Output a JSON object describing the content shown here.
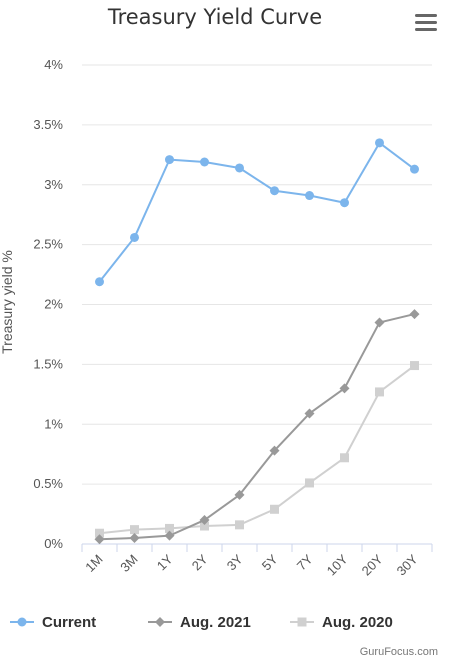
{
  "chart_data": {
    "type": "line",
    "title": "Treasury Yield Curve",
    "ylabel": "Treasury yield %",
    "xlabel": "",
    "categories": [
      "1M",
      "3M",
      "1Y",
      "2Y",
      "3Y",
      "5Y",
      "7Y",
      "10Y",
      "20Y",
      "30Y"
    ],
    "yticks": [
      "0%",
      "0.5%",
      "1%",
      "1.5%",
      "2%",
      "2.5%",
      "3%",
      "3.5%",
      "4%"
    ],
    "ylim": [
      0,
      4
    ],
    "grid": true,
    "legend_position": "bottom",
    "series": [
      {
        "name": "Current",
        "marker": "circle",
        "color": "#7cb5ec",
        "values": [
          2.19,
          2.56,
          3.21,
          3.19,
          3.14,
          2.95,
          2.91,
          2.85,
          3.35,
          3.13
        ]
      },
      {
        "name": "Aug. 2021",
        "marker": "diamond",
        "color": "#999999",
        "values": [
          0.04,
          0.05,
          0.07,
          0.2,
          0.41,
          0.78,
          1.09,
          1.3,
          1.85,
          1.92
        ]
      },
      {
        "name": "Aug. 2020",
        "marker": "square",
        "color": "#d0d0d0",
        "values": [
          0.09,
          0.12,
          0.13,
          0.15,
          0.16,
          0.29,
          0.51,
          0.72,
          1.27,
          1.49
        ]
      }
    ],
    "credit": "GuruFocus.com"
  },
  "menu": {
    "icon": "hamburger-menu-icon"
  }
}
